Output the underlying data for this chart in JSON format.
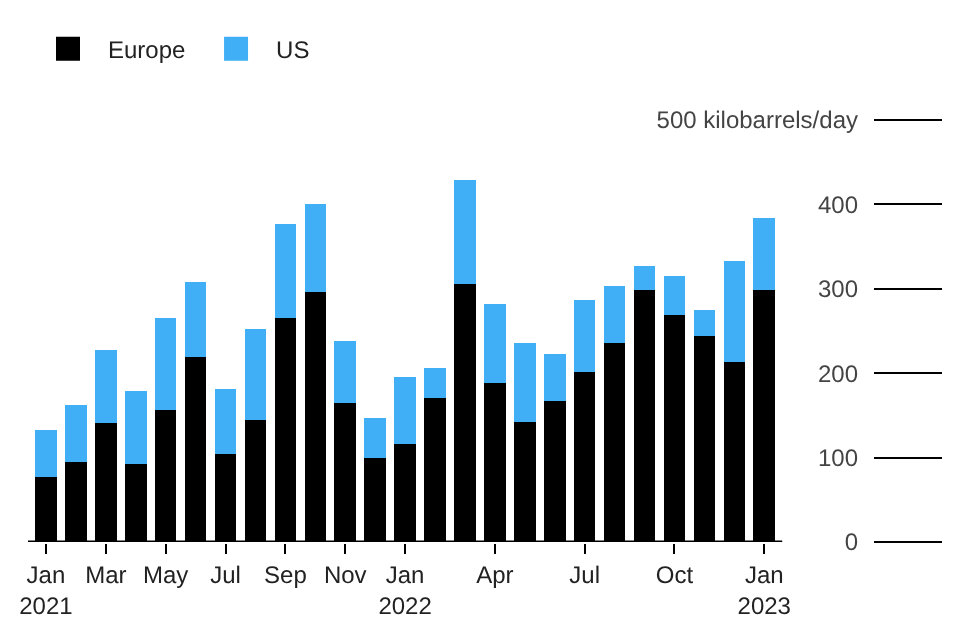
{
  "chart_data": {
    "type": "bar",
    "stacked": true,
    "categories": [
      "Jan\n2021",
      null,
      "Mar",
      null,
      "May",
      null,
      "Jul",
      null,
      "Sep",
      null,
      "Nov",
      null,
      "Jan\n2022",
      null,
      null,
      "Apr",
      null,
      null,
      "Jul",
      null,
      null,
      "Oct",
      null,
      null,
      "Jan\n2023"
    ],
    "series": [
      {
        "name": "Europe",
        "color": "#000000",
        "values": [
          77,
          95,
          141,
          93,
          157,
          219,
          104,
          144,
          265,
          296,
          165,
          99,
          116,
          171,
          306,
          188,
          142,
          167,
          201,
          236,
          298,
          269,
          244,
          213,
          298
        ]
      },
      {
        "name": "US",
        "color": "#40aff5",
        "values": [
          56,
          67,
          86,
          86,
          108,
          89,
          77,
          108,
          112,
          105,
          73,
          48,
          80,
          35,
          123,
          94,
          94,
          56,
          86,
          67,
          29,
          46,
          31,
          120,
          86
        ]
      }
    ],
    "ylim": [
      0,
      500
    ],
    "yticks": [
      0,
      100,
      200,
      300,
      400,
      {
        "value": 500,
        "label": "500 kilobarrels/day"
      }
    ],
    "legend": "top left"
  }
}
